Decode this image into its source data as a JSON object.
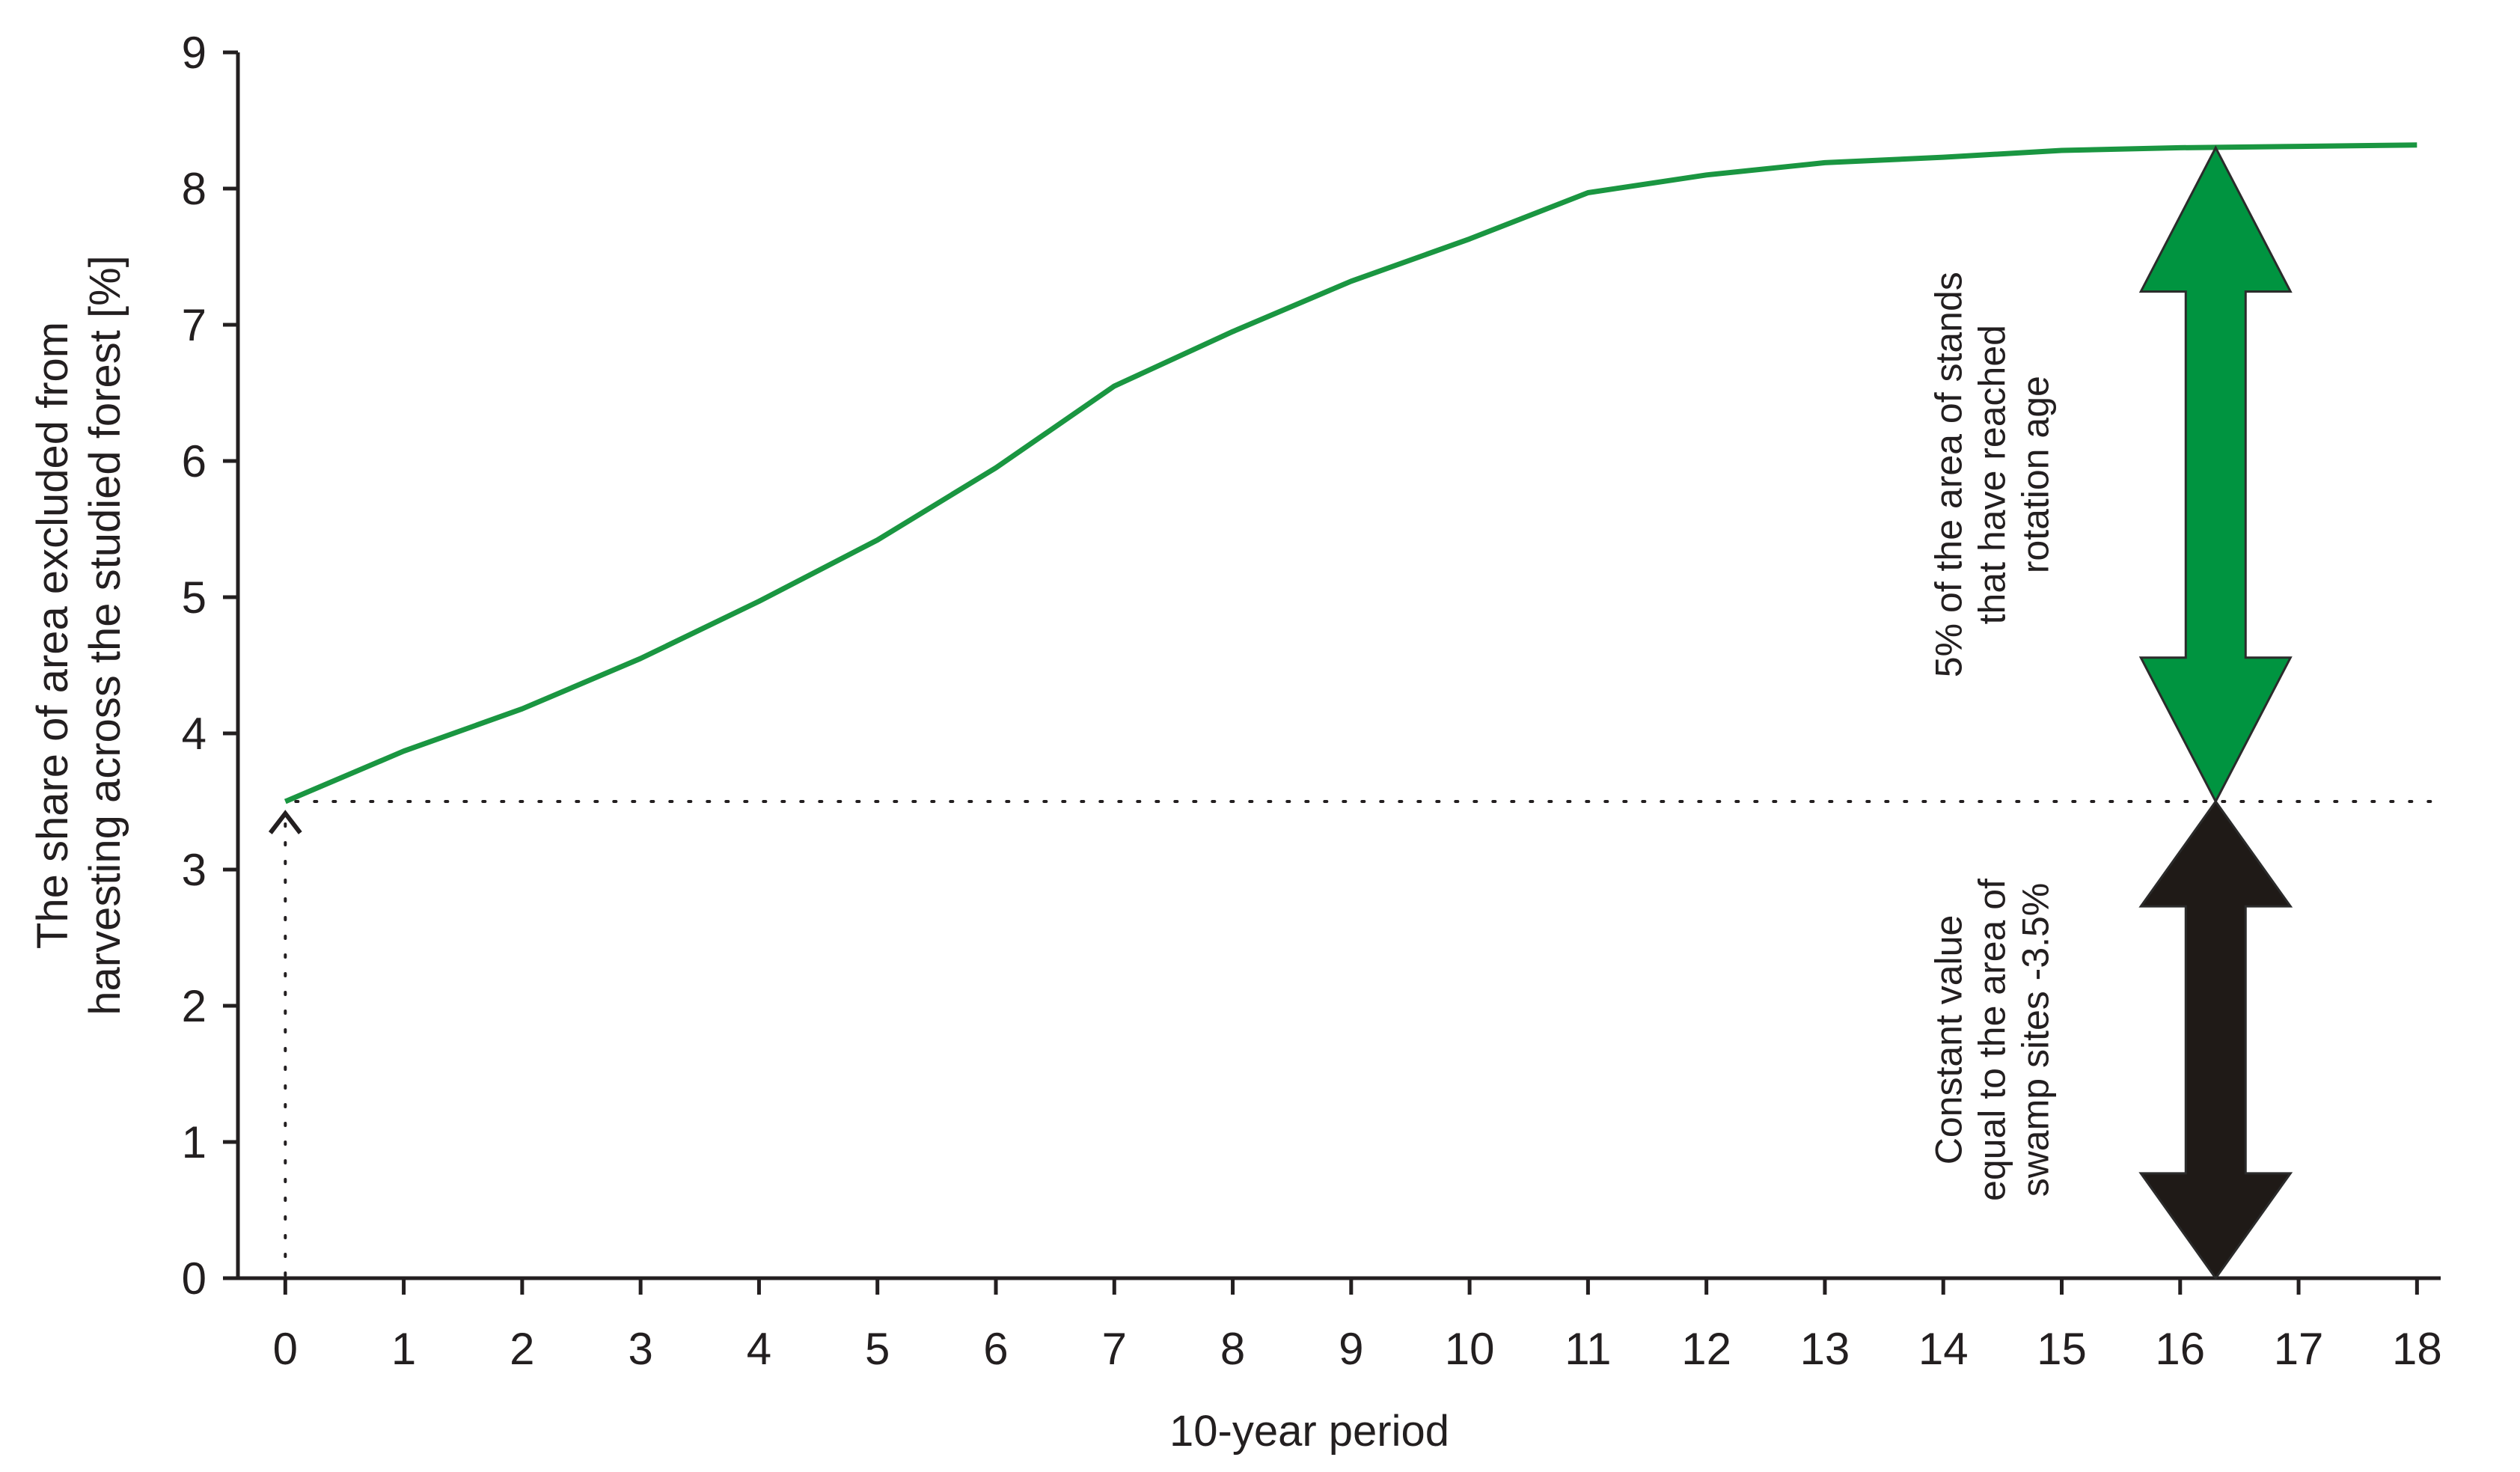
{
  "chart_data": {
    "type": "line",
    "xlabel": "10-year period",
    "ylabel": [
      "The share of area excluded from",
      "harvesting across the studied forest [%]"
    ],
    "xlim": [
      -0.4,
      18.2
    ],
    "ylim": [
      0,
      9
    ],
    "x_ticks": [
      0,
      1,
      2,
      3,
      4,
      5,
      6,
      7,
      8,
      9,
      10,
      11,
      12,
      13,
      14,
      15,
      16,
      17,
      18
    ],
    "y_ticks": [
      0,
      1,
      2,
      3,
      4,
      5,
      6,
      7,
      8,
      9
    ],
    "grid": false,
    "series": [
      {
        "color": "#1a9641",
        "x": [
          0,
          1,
          2,
          3,
          4,
          5,
          6,
          7,
          8,
          9,
          10,
          11,
          12,
          13,
          14,
          15,
          16,
          17,
          18
        ],
        "y": [
          3.5,
          3.87,
          4.18,
          4.55,
          4.97,
          5.42,
          5.95,
          6.55,
          6.95,
          7.32,
          7.63,
          7.97,
          8.1,
          8.19,
          8.23,
          8.28,
          8.3,
          8.31,
          8.32
        ]
      }
    ],
    "reference_line": {
      "y": 3.5,
      "style": "dotted"
    },
    "baseline_marker": {
      "x": 0,
      "y": 3.5
    },
    "annotations": [
      {
        "kind": "double-arrow",
        "color": "#009440",
        "x": 16.3,
        "y_from": 3.5,
        "y_to": 8.3,
        "lines": [
          "5% of the area of stands",
          "that have reached",
          "rotation age"
        ]
      },
      {
        "kind": "double-arrow",
        "color": "#1f1a17",
        "x": 16.3,
        "y_from": 0,
        "y_to": 3.5,
        "lines": [
          "Constant value",
          "equal to the area of",
          "swamp sites -3.5%"
        ]
      }
    ]
  }
}
